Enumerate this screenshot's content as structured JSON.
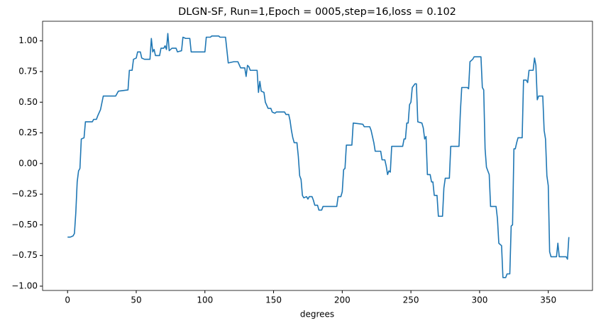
{
  "chart_data": {
    "type": "line",
    "title": "DLGN-SF, Run=1,Epoch = 0005,step=16,loss = 0.102",
    "x_label": "degrees",
    "x": [
      0,
      2,
      4,
      5,
      6,
      7,
      8,
      9,
      10,
      12,
      13,
      18,
      19,
      21,
      22,
      24,
      26,
      35,
      37,
      44,
      45,
      47,
      48,
      50,
      51,
      53,
      54,
      56,
      60,
      61,
      62,
      63,
      64,
      67,
      68,
      70,
      71,
      72,
      73,
      74,
      76,
      79,
      80,
      83,
      84,
      86,
      89,
      90,
      100,
      101,
      104,
      105,
      110,
      111,
      115,
      117,
      121,
      124,
      126,
      129,
      130,
      131,
      132,
      133,
      138,
      139,
      140,
      141,
      143,
      144,
      146,
      148,
      149,
      151,
      152,
      158,
      159,
      161,
      162,
      163,
      164,
      165,
      167,
      168,
      169,
      170,
      171,
      172,
      174,
      175,
      176,
      178,
      179,
      180,
      182,
      183,
      185,
      186,
      196,
      197,
      199,
      200,
      201,
      202,
      203,
      207,
      208,
      215,
      216,
      220,
      221,
      223,
      224,
      228,
      229,
      231,
      232,
      233,
      234,
      235,
      236,
      244,
      245,
      246,
      247,
      248,
      249,
      250,
      251,
      253,
      254,
      255,
      258,
      259,
      260,
      261,
      262,
      264,
      265,
      266,
      267,
      269,
      270,
      273,
      274,
      275,
      278,
      279,
      285,
      286,
      287,
      291,
      292,
      293,
      295,
      296,
      301,
      302,
      303,
      304,
      305,
      307,
      308,
      312,
      313,
      314,
      316,
      317,
      319,
      320,
      322,
      323,
      324,
      325,
      326,
      327,
      328,
      331,
      332,
      334,
      335,
      336,
      339,
      340,
      341,
      342,
      343,
      346,
      347,
      348,
      349,
      350,
      351,
      352,
      356,
      357,
      358,
      363,
      364,
      365
    ],
    "series": [
      {
        "color": "#1f77b4",
        "values": [
          -0.6,
          -0.6,
          -0.59,
          -0.57,
          -0.4,
          -0.15,
          -0.06,
          -0.04,
          0.2,
          0.21,
          0.34,
          0.34,
          0.36,
          0.36,
          0.39,
          0.44,
          0.55,
          0.55,
          0.59,
          0.6,
          0.76,
          0.76,
          0.85,
          0.86,
          0.91,
          0.91,
          0.86,
          0.85,
          0.85,
          1.02,
          0.91,
          0.93,
          0.88,
          0.88,
          0.94,
          0.94,
          0.96,
          0.93,
          1.06,
          0.92,
          0.94,
          0.94,
          0.91,
          0.92,
          1.03,
          1.02,
          1.02,
          0.91,
          0.91,
          1.03,
          1.03,
          1.04,
          1.04,
          1.03,
          1.03,
          0.82,
          0.83,
          0.83,
          0.78,
          0.78,
          0.71,
          0.8,
          0.79,
          0.76,
          0.76,
          0.58,
          0.67,
          0.59,
          0.58,
          0.5,
          0.45,
          0.45,
          0.42,
          0.41,
          0.42,
          0.42,
          0.4,
          0.4,
          0.35,
          0.27,
          0.21,
          0.17,
          0.17,
          0.06,
          -0.1,
          -0.13,
          -0.26,
          -0.28,
          -0.27,
          -0.29,
          -0.27,
          -0.27,
          -0.3,
          -0.34,
          -0.34,
          -0.38,
          -0.38,
          -0.35,
          -0.35,
          -0.27,
          -0.27,
          -0.23,
          -0.05,
          -0.04,
          0.15,
          0.15,
          0.33,
          0.32,
          0.3,
          0.3,
          0.27,
          0.17,
          0.1,
          0.1,
          0.03,
          0.03,
          -0.02,
          -0.09,
          -0.06,
          -0.07,
          0.14,
          0.14,
          0.2,
          0.2,
          0.33,
          0.33,
          0.48,
          0.5,
          0.62,
          0.65,
          0.65,
          0.34,
          0.33,
          0.29,
          0.2,
          0.22,
          -0.09,
          -0.09,
          -0.15,
          -0.15,
          -0.26,
          -0.26,
          -0.43,
          -0.43,
          -0.2,
          -0.12,
          -0.12,
          0.14,
          0.14,
          0.42,
          0.62,
          0.62,
          0.61,
          0.83,
          0.85,
          0.87,
          0.87,
          0.62,
          0.6,
          0.12,
          -0.03,
          -0.09,
          -0.35,
          -0.35,
          -0.45,
          -0.65,
          -0.67,
          -0.93,
          -0.93,
          -0.9,
          -0.9,
          -0.51,
          -0.5,
          0.12,
          0.12,
          0.17,
          0.21,
          0.21,
          0.68,
          0.68,
          0.66,
          0.76,
          0.76,
          0.86,
          0.8,
          0.52,
          0.55,
          0.55,
          0.27,
          0.2,
          -0.1,
          -0.18,
          -0.72,
          -0.76,
          -0.76,
          -0.65,
          -0.76,
          -0.76,
          -0.78,
          -0.6
        ]
      }
    ],
    "xlim": [
      -18.2,
      382.2
    ],
    "xticks": [
      0,
      50,
      100,
      150,
      200,
      250,
      300,
      350
    ],
    "ylim": [
      -1.035,
      1.16
    ],
    "yticks": [
      {
        "value": -1,
        "label": "−1.00"
      },
      {
        "value": -0.75,
        "label": "−0.75"
      },
      {
        "value": -0.5,
        "label": "−0.50"
      },
      {
        "value": -0.25,
        "label": "−0.25"
      },
      {
        "value": 0,
        "label": "0.00"
      },
      {
        "value": 0.25,
        "label": "0.25"
      },
      {
        "value": 0.5,
        "label": "0.50"
      },
      {
        "value": 0.75,
        "label": "0.75"
      },
      {
        "value": 1,
        "label": "1.00"
      }
    ],
    "grid": false
  }
}
